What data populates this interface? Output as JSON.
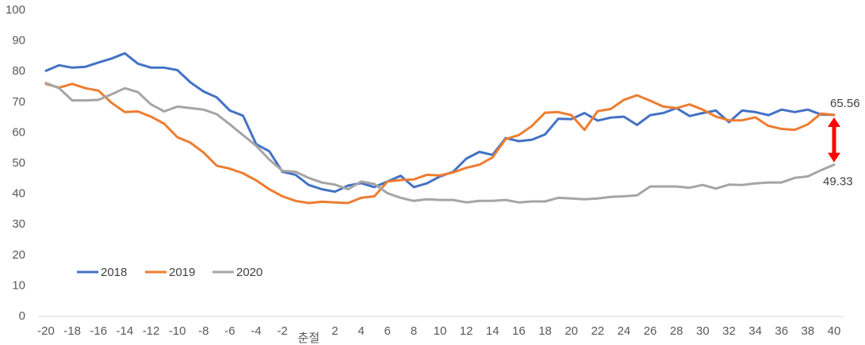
{
  "chart_data": {
    "type": "line",
    "title": "",
    "xlabel": "",
    "ylabel": "",
    "ylim": [
      0,
      100
    ],
    "yticks": [
      0,
      10,
      20,
      30,
      40,
      50,
      60,
      70,
      80,
      90,
      100
    ],
    "x_range": [
      -20,
      40
    ],
    "x_tick_labels": [
      {
        "x": -20,
        "label": "-20"
      },
      {
        "x": -18,
        "label": "-18"
      },
      {
        "x": -16,
        "label": "-16"
      },
      {
        "x": -14,
        "label": "-14"
      },
      {
        "x": -12,
        "label": "-12"
      },
      {
        "x": -10,
        "label": "-10"
      },
      {
        "x": -8,
        "label": "-8"
      },
      {
        "x": -6,
        "label": "-6"
      },
      {
        "x": -4,
        "label": "-4"
      },
      {
        "x": -2,
        "label": "-2"
      },
      {
        "x": 0,
        "label": "춘절"
      },
      {
        "x": 2,
        "label": "2"
      },
      {
        "x": 4,
        "label": "4"
      },
      {
        "x": 6,
        "label": "6"
      },
      {
        "x": 8,
        "label": "8"
      },
      {
        "x": 10,
        "label": "10"
      },
      {
        "x": 12,
        "label": "12"
      },
      {
        "x": 14,
        "label": "14"
      },
      {
        "x": 16,
        "label": "16"
      },
      {
        "x": 18,
        "label": "18"
      },
      {
        "x": 20,
        "label": "20"
      },
      {
        "x": 22,
        "label": "22"
      },
      {
        "x": 24,
        "label": "24"
      },
      {
        "x": 26,
        "label": "26"
      },
      {
        "x": 28,
        "label": "28"
      },
      {
        "x": 30,
        "label": "30"
      },
      {
        "x": 32,
        "label": "32"
      },
      {
        "x": 34,
        "label": "34"
      },
      {
        "x": 36,
        "label": "36"
      },
      {
        "x": 38,
        "label": "38"
      },
      {
        "x": 40,
        "label": "40"
      }
    ],
    "grid": false,
    "legend_position": "bottom-left",
    "series": [
      {
        "name": "2018",
        "color": "#4472C4",
        "start_x": -20,
        "values": [
          80.0,
          81.8,
          81.0,
          81.3,
          82.7,
          84.0,
          85.7,
          82.3,
          81.0,
          81.0,
          80.2,
          76.2,
          73.2,
          71.3,
          67.0,
          65.3,
          56.0,
          53.7,
          47.0,
          46.0,
          42.7,
          41.3,
          40.5,
          42.5,
          43.3,
          42.0,
          43.8,
          45.7,
          42.0,
          43.2,
          45.5,
          47.0,
          51.3,
          53.5,
          52.5,
          58.0,
          57.0,
          57.5,
          59.2,
          64.3,
          64.2,
          66.2,
          63.7,
          64.7,
          65.0,
          62.3,
          65.5,
          66.2,
          67.8,
          65.2,
          66.2,
          67.0,
          63.2,
          67.0,
          66.5,
          65.5,
          67.3,
          66.5,
          67.3,
          65.7,
          65.56
        ]
      },
      {
        "name": "2019",
        "color": "#ED7D31",
        "start_x": -20,
        "values": [
          75.7,
          74.5,
          75.7,
          74.3,
          73.5,
          69.5,
          66.5,
          66.7,
          65.0,
          62.7,
          58.3,
          56.5,
          53.3,
          49.0,
          48.0,
          46.5,
          44.2,
          41.3,
          39.0,
          37.5,
          36.8,
          37.2,
          37.0,
          36.8,
          38.5,
          39.0,
          43.8,
          44.3,
          44.5,
          46.0,
          45.8,
          46.8,
          48.3,
          49.3,
          51.7,
          57.7,
          59.0,
          62.0,
          66.3,
          66.5,
          65.5,
          60.7,
          66.8,
          67.5,
          70.5,
          72.0,
          70.2,
          68.3,
          67.8,
          69.0,
          67.3,
          65.0,
          63.8,
          63.8,
          64.8,
          62.0,
          61.0,
          60.7,
          62.5,
          66.0,
          65.56
        ]
      },
      {
        "name": "2020",
        "color": "#A5A5A5",
        "start_x": -20,
        "values": [
          76.0,
          74.3,
          70.3,
          70.3,
          70.5,
          72.3,
          74.3,
          73.0,
          69.0,
          66.7,
          68.3,
          67.8,
          67.3,
          65.8,
          62.5,
          59.0,
          55.5,
          51.0,
          47.3,
          47.0,
          45.0,
          43.5,
          42.8,
          41.3,
          43.8,
          43.0,
          40.0,
          38.5,
          37.5,
          38.0,
          37.8,
          37.8,
          37.0,
          37.5,
          37.5,
          37.8,
          37.0,
          37.3,
          37.3,
          38.5,
          38.3,
          38.0,
          38.3,
          38.8,
          39.0,
          39.3,
          42.2,
          42.2,
          42.2,
          41.8,
          42.7,
          41.5,
          42.8,
          42.7,
          43.2,
          43.5,
          43.5,
          45.0,
          45.5,
          47.5,
          49.33
        ]
      }
    ],
    "annotations": {
      "top_label": "65.56",
      "bottom_label": "49.33",
      "arrow_color": "#FF0000",
      "arrow_x": 40
    }
  }
}
